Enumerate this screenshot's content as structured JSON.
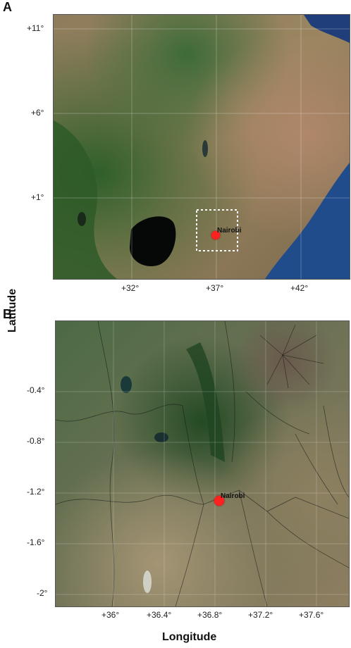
{
  "figure": {
    "ylabel": "Latitude",
    "xlabel": "Longitude"
  },
  "panel_a": {
    "letter": "A",
    "lat_ticks": [
      "+11°",
      "+6°",
      "+1°"
    ],
    "lon_ticks": [
      "+32°",
      "+37°",
      "+42°"
    ],
    "city": "Nairobi",
    "colors": {
      "land_green": "#3f6a32",
      "land_arid": "#a08a64",
      "water": "#1f4a8a",
      "lake": "#0a0f0a",
      "marker": "#ff2020"
    }
  },
  "panel_b": {
    "letter": "B",
    "lat_ticks": [
      "-0.4°",
      "-0.8°",
      "-1.2°",
      "-1.6°",
      "-2°"
    ],
    "lon_ticks": [
      "+36°",
      "+36.4°",
      "+36.8°",
      "+37.2°",
      "+37.6°"
    ],
    "city": "Nairobi",
    "colors": {
      "land_green": "#2f5a2f",
      "land_arid": "#9c8b6a",
      "marker": "#ff2020"
    }
  }
}
